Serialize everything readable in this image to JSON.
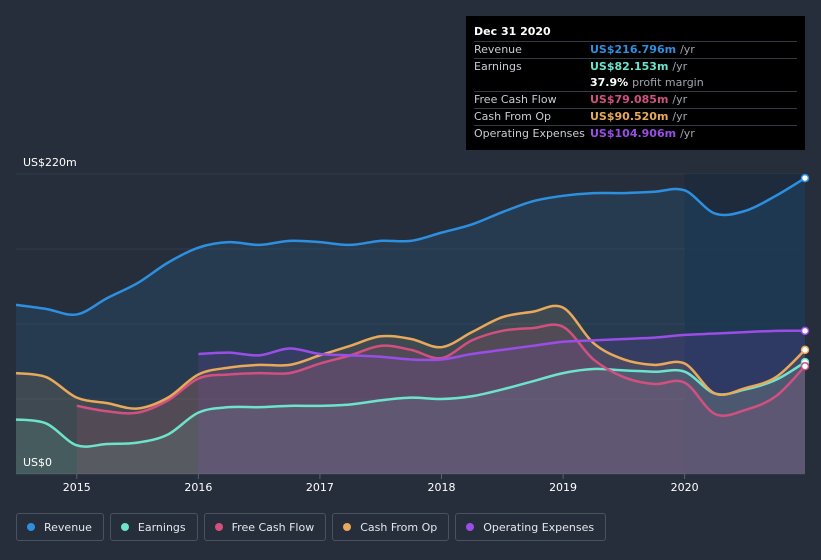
{
  "tooltip": {
    "date": "Dec 31 2020",
    "rows": [
      {
        "label": "Revenue",
        "value": "US$216.796m",
        "unit": "/yr",
        "color": "#2d8fe0"
      },
      {
        "label": "Earnings",
        "value": "US$82.153m",
        "unit": "/yr",
        "color": "#6ee3cc"
      },
      {
        "label": "",
        "value": "37.9%",
        "unit": "profit margin",
        "color": "#ffffff"
      },
      {
        "label": "Free Cash Flow",
        "value": "US$79.085m",
        "unit": "/yr",
        "color": "#d2507f"
      },
      {
        "label": "Cash From Op",
        "value": "US$90.520m",
        "unit": "/yr",
        "color": "#e8a95b"
      },
      {
        "label": "Operating Expenses",
        "value": "US$104.906m",
        "unit": "/yr",
        "color": "#9b4de8"
      }
    ]
  },
  "chart_data": {
    "type": "area",
    "ylabel_top": "US$220m",
    "ylabel_bottom": "US$0",
    "ylim": [
      0,
      220
    ],
    "xlim": [
      2014.5,
      2020.99
    ],
    "xticks": [
      2015,
      2016,
      2017,
      2018,
      2019,
      2020
    ],
    "xtick_labels": [
      "2015",
      "2016",
      "2017",
      "2018",
      "2019",
      "2020"
    ],
    "grid": "horizontal",
    "legend_position": "bottom",
    "highlight_from": 2020.0,
    "series": [
      {
        "name": "Revenue",
        "color": "#2d8fe0",
        "x": [
          2014.5,
          2014.75,
          2015.0,
          2015.25,
          2015.5,
          2015.75,
          2016.0,
          2016.25,
          2016.5,
          2016.75,
          2017.0,
          2017.25,
          2017.5,
          2017.75,
          2018.0,
          2018.25,
          2018.5,
          2018.75,
          2019.0,
          2019.25,
          2019.5,
          2019.75,
          2020.0,
          2020.25,
          2020.5,
          2020.75,
          2020.99
        ],
        "values": [
          124,
          121,
          117,
          129,
          140,
          155,
          166,
          170,
          168,
          171,
          170,
          168,
          171,
          171,
          177,
          183,
          192,
          200,
          204,
          206,
          206,
          207,
          208,
          191,
          193,
          204,
          217
        ]
      },
      {
        "name": "Earnings",
        "color": "#6ee3cc",
        "x": [
          2014.5,
          2014.75,
          2015.0,
          2015.25,
          2015.5,
          2015.75,
          2016.0,
          2016.25,
          2016.5,
          2016.75,
          2017.0,
          2017.25,
          2017.5,
          2017.75,
          2018.0,
          2018.25,
          2018.5,
          2018.75,
          2019.0,
          2019.25,
          2019.5,
          2019.75,
          2020.0,
          2020.25,
          2020.5,
          2020.75,
          2020.99
        ],
        "values": [
          40,
          37,
          21,
          22,
          23,
          29,
          45,
          49,
          49,
          50,
          50,
          51,
          54,
          56,
          55,
          57,
          62,
          68,
          74,
          77,
          76,
          75,
          75,
          59,
          62,
          69,
          82
        ]
      },
      {
        "name": "Free Cash Flow",
        "color": "#d2507f",
        "x": [
          2015.0,
          2015.25,
          2015.5,
          2015.75,
          2016.0,
          2016.25,
          2016.5,
          2016.75,
          2017.0,
          2017.25,
          2017.5,
          2017.75,
          2018.0,
          2018.25,
          2018.5,
          2018.75,
          2019.0,
          2019.25,
          2019.5,
          2019.75,
          2020.0,
          2020.25,
          2020.5,
          2020.75,
          2020.99
        ],
        "values": [
          50,
          46,
          45,
          54,
          70,
          73,
          74,
          74,
          81,
          87,
          94,
          91,
          85,
          98,
          105,
          107,
          108,
          84,
          71,
          66,
          67,
          44,
          47,
          57,
          79
        ]
      },
      {
        "name": "Cash From Op",
        "color": "#e8a95b",
        "x": [
          2014.5,
          2014.75,
          2015.0,
          2015.25,
          2015.5,
          2015.75,
          2016.0,
          2016.25,
          2016.5,
          2016.75,
          2017.0,
          2017.25,
          2017.5,
          2017.75,
          2018.0,
          2018.25,
          2018.5,
          2018.75,
          2019.0,
          2019.25,
          2019.5,
          2019.75,
          2020.0,
          2020.25,
          2020.5,
          2020.75,
          2020.99
        ],
        "values": [
          74,
          71,
          56,
          52,
          48,
          56,
          73,
          78,
          80,
          80,
          87,
          94,
          101,
          99,
          93,
          104,
          115,
          119,
          122,
          96,
          84,
          80,
          81,
          59,
          63,
          71,
          91
        ]
      },
      {
        "name": "Operating Expenses",
        "color": "#9b4de8",
        "x": [
          2016.0,
          2016.25,
          2016.5,
          2016.75,
          2017.0,
          2017.25,
          2017.5,
          2017.75,
          2018.0,
          2018.25,
          2018.5,
          2018.75,
          2019.0,
          2019.25,
          2019.5,
          2019.75,
          2020.0,
          2020.25,
          2020.5,
          2020.75,
          2020.99
        ],
        "values": [
          88,
          89,
          87,
          92,
          88,
          87,
          86,
          84,
          84,
          88,
          91,
          94,
          97,
          98,
          99,
          100,
          102,
          103,
          104,
          105,
          105
        ]
      }
    ]
  },
  "legend": {
    "items": [
      {
        "label": "Revenue",
        "color": "#2d8fe0"
      },
      {
        "label": "Earnings",
        "color": "#6ee3cc"
      },
      {
        "label": "Free Cash Flow",
        "color": "#d2507f"
      },
      {
        "label": "Cash From Op",
        "color": "#e8a95b"
      },
      {
        "label": "Operating Expenses",
        "color": "#9b4de8"
      }
    ]
  }
}
